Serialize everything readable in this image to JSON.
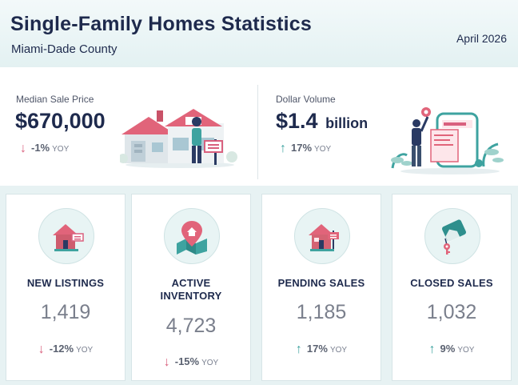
{
  "header": {
    "title": "Single-Family Homes Statistics",
    "subtitle": "Miami-Dade County",
    "date": "April 2026"
  },
  "highlights": [
    {
      "label": "Median Sale Price",
      "value": "$670,000",
      "unit": "",
      "direction": "down",
      "change": "-1%",
      "period": "YOY",
      "icon": "house-with-sale-sign-illustration"
    },
    {
      "label": "Dollar Volume",
      "value": "$1.4",
      "unit": "billion",
      "direction": "up",
      "change": "17%",
      "period": "YOY",
      "icon": "phone-payment-illustration"
    }
  ],
  "metrics": [
    {
      "label": "NEW LISTINGS",
      "value": "1,419",
      "direction": "down",
      "change": "-12%",
      "period": "YOY",
      "icon": "house-for-sale-icon"
    },
    {
      "label": "ACTIVE INVENTORY",
      "value": "4,723",
      "direction": "down",
      "change": "-15%",
      "period": "YOY",
      "icon": "map-pin-icon"
    },
    {
      "label": "PENDING SALES",
      "value": "1,185",
      "direction": "up",
      "change": "17%",
      "period": "YOY",
      "icon": "house-sold-sign-icon"
    },
    {
      "label": "CLOSED SALES",
      "value": "1,032",
      "direction": "up",
      "change": "9%",
      "period": "YOY",
      "icon": "house-keys-icon"
    }
  ],
  "colors": {
    "navy": "#1e2a4d",
    "down": "#d9607e",
    "up": "#3ea3a0",
    "panel": "#e7f2f3"
  }
}
